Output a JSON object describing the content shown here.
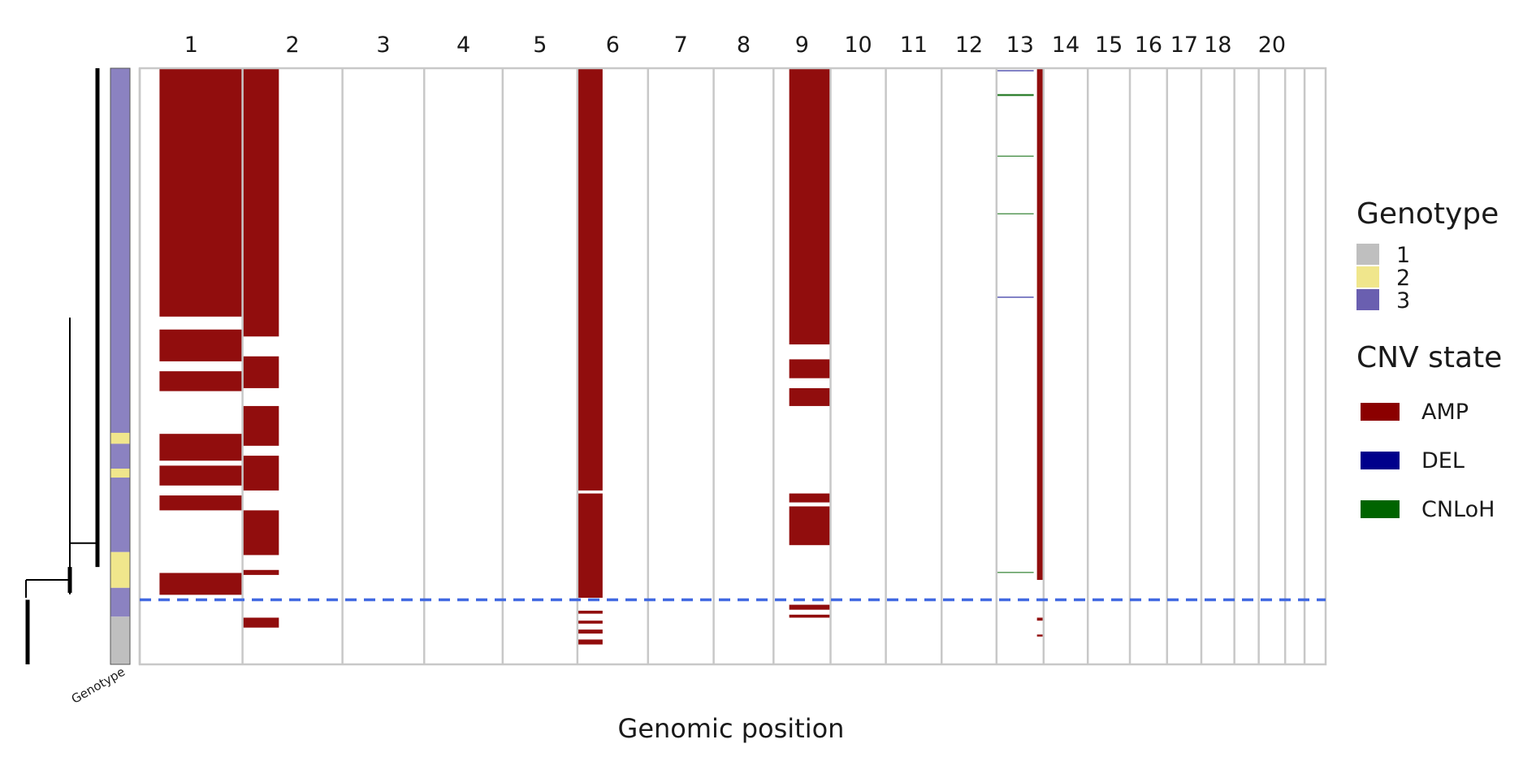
{
  "chart_data": {
    "type": "heatmap",
    "xlabel": "Genomic position",
    "strip_label": "Genotype",
    "chromosomes": [
      "1",
      "2",
      "3",
      "4",
      "5",
      "6",
      "7",
      "8",
      "9",
      "10",
      "11",
      "12",
      "13",
      "14",
      "15",
      "16",
      "17",
      "18",
      "19",
      "20",
      "21",
      "22"
    ],
    "chromosome_labels": [
      "1",
      "2",
      "3",
      "4",
      "5",
      "6",
      "7",
      "8",
      "9",
      "10",
      "11",
      "12",
      "13",
      "14",
      "15",
      "16",
      "17",
      "18",
      "",
      "20",
      "",
      ""
    ],
    "chromosome_lengths": [
      249,
      242,
      198,
      190,
      181,
      171,
      159,
      145,
      138,
      134,
      135,
      133,
      114,
      107,
      102,
      90,
      83,
      80,
      59,
      64,
      47,
      51
    ],
    "n_cells": 600,
    "genotype_segments": [
      {
        "genotype": "3",
        "from": 0,
        "to": 367
      },
      {
        "genotype": "2",
        "from": 367,
        "to": 378
      },
      {
        "genotype": "3",
        "from": 378,
        "to": 403
      },
      {
        "genotype": "2",
        "from": 403,
        "to": 412
      },
      {
        "genotype": "3",
        "from": 412,
        "to": 487
      },
      {
        "genotype": "2",
        "from": 487,
        "to": 523
      },
      {
        "genotype": "3",
        "from": 523,
        "to": 552
      },
      {
        "genotype": "1",
        "from": 552,
        "to": 600
      }
    ],
    "clone_boundary_cell": 535,
    "cnv_segments": [
      {
        "chrom": "1",
        "state": "AMP",
        "start": 48,
        "end": 249,
        "cells": [
          [
            0,
            250
          ],
          [
            263,
            295
          ],
          [
            305,
            325
          ],
          [
            368,
            395
          ],
          [
            400,
            420
          ],
          [
            430,
            445
          ],
          [
            508,
            530
          ]
        ]
      },
      {
        "chrom": "2",
        "state": "AMP",
        "start": 0,
        "end": 88,
        "cells": [
          [
            0,
            270
          ],
          [
            290,
            322
          ],
          [
            340,
            380
          ],
          [
            390,
            425
          ],
          [
            445,
            490
          ],
          [
            505,
            510
          ],
          [
            553,
            563
          ]
        ]
      },
      {
        "chrom": "6",
        "state": "AMP",
        "start": 0,
        "end": 61,
        "cells": [
          [
            0,
            425
          ],
          [
            428,
            533
          ],
          [
            546,
            549
          ],
          [
            556,
            559
          ],
          [
            565,
            569
          ],
          [
            575,
            580
          ]
        ]
      },
      {
        "chrom": "9",
        "state": "AMP",
        "start": 38,
        "end": 138,
        "cells": [
          [
            0,
            278
          ],
          [
            293,
            312
          ],
          [
            322,
            340
          ],
          [
            428,
            437
          ],
          [
            441,
            480
          ],
          [
            540,
            545
          ],
          [
            550,
            553
          ]
        ]
      },
      {
        "chrom": "13",
        "state": "AMP",
        "start": 98,
        "end": 114,
        "cells": [
          [
            0,
            515
          ],
          [
            553,
            556
          ],
          [
            570,
            572
          ]
        ]
      },
      {
        "chrom": "13",
        "state": "DEL",
        "start": 0,
        "end": 90,
        "cells": [
          [
            2,
            3
          ],
          [
            230,
            231
          ]
        ]
      },
      {
        "chrom": "13",
        "state": "CNLoH",
        "start": 0,
        "end": 90,
        "cells": [
          [
            26,
            28
          ],
          [
            88,
            89
          ],
          [
            146,
            147
          ],
          [
            507,
            508
          ]
        ]
      }
    ],
    "legend": {
      "genotype": {
        "title": "Genotype",
        "items": [
          {
            "label": "1",
            "color": "#bfbfbf"
          },
          {
            "label": "2",
            "color": "#f0e68c"
          },
          {
            "label": "3",
            "color": "#6a5fb0"
          }
        ]
      },
      "cnv": {
        "title": "CNV state",
        "items": [
          {
            "label": "AMP",
            "color": "#8b0000"
          },
          {
            "label": "DEL",
            "color": "#00008b"
          },
          {
            "label": "CNLoH",
            "color": "#006400"
          }
        ]
      }
    },
    "colors": {
      "AMP": "#8b0000",
      "DEL": "#00008b",
      "CNLoH": "#006400",
      "boundary_line": "#4169e1",
      "separator": "#c8c8c8",
      "tree": "#000000"
    }
  }
}
